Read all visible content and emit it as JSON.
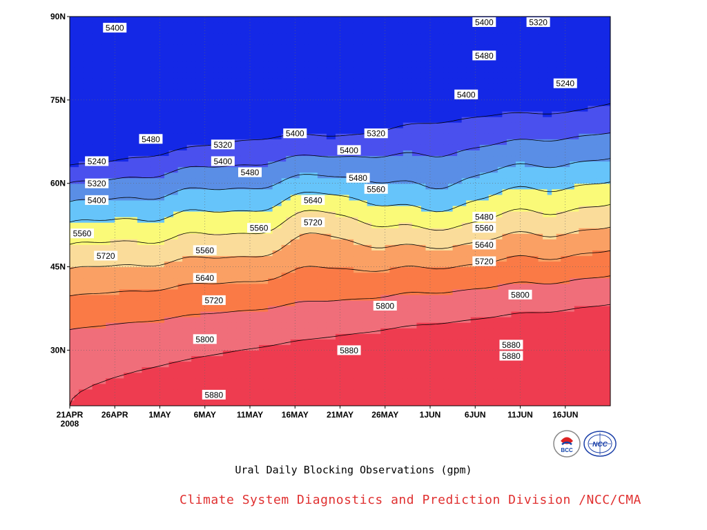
{
  "chart_data": {
    "type": "heatmap",
    "subtype": "filled-contour",
    "subtitle": "Ural Daily Blocking Observations (gpm)",
    "credit": "Climate System Diagnostics and Prediction Division /NCC/CMA",
    "x_ticks": [
      "21APR",
      "26APR",
      "1MAY",
      "6MAY",
      "11MAY",
      "16MAY",
      "21MAY",
      "26MAY",
      "1JUN",
      "6JUN",
      "11JUN",
      "16JUN"
    ],
    "x_year": "2008",
    "x_range": [
      "2008-04-21",
      "2008-06-20"
    ],
    "y_ticks": [
      "30N",
      "45N",
      "60N",
      "75N",
      "90N"
    ],
    "y_range": [
      20,
      90
    ],
    "grid": "dotted",
    "levels": [
      5240,
      5320,
      5400,
      5480,
      5560,
      5640,
      5720,
      5800,
      5880
    ],
    "colors": [
      "#0a1a6e",
      "#1428e6",
      "#4a50ee",
      "#5a8ee6",
      "#66c4fa",
      "#fafa78",
      "#fadc9a",
      "#faa064",
      "#fa7a46",
      "#f06e7a",
      "#ee3c50"
    ],
    "contour_labels": [
      {
        "text": "5400",
        "date": "2008-04-26",
        "lat": 88
      },
      {
        "text": "5400",
        "date": "2008-06-06",
        "lat": 90
      },
      {
        "text": "5320",
        "date": "2008-06-12",
        "lat": 89
      },
      {
        "text": "5480",
        "date": "2008-06-06",
        "lat": 83
      },
      {
        "text": "5400",
        "date": "2008-06-04",
        "lat": 76
      },
      {
        "text": "5240",
        "date": "2008-06-15",
        "lat": 78
      },
      {
        "text": "5480",
        "date": "2008-04-30",
        "lat": 68
      },
      {
        "text": "5240",
        "date": "2008-04-24",
        "lat": 64
      },
      {
        "text": "5320",
        "date": "2008-04-24",
        "lat": 60
      },
      {
        "text": "5400",
        "date": "2008-04-24",
        "lat": 57
      },
      {
        "text": "5320",
        "date": "2008-05-08",
        "lat": 67
      },
      {
        "text": "5400",
        "date": "2008-05-08",
        "lat": 64
      },
      {
        "text": "5480",
        "date": "2008-05-11",
        "lat": 62
      },
      {
        "text": "5400",
        "date": "2008-05-16",
        "lat": 69
      },
      {
        "text": "5320",
        "date": "2008-05-25",
        "lat": 69
      },
      {
        "text": "5400",
        "date": "2008-05-22",
        "lat": 66
      },
      {
        "text": "5480",
        "date": "2008-05-23",
        "lat": 61
      },
      {
        "text": "5560",
        "date": "2008-05-25",
        "lat": 59
      },
      {
        "text": "5640",
        "date": "2008-05-18",
        "lat": 57
      },
      {
        "text": "5720",
        "date": "2008-05-18",
        "lat": 53
      },
      {
        "text": "5560",
        "date": "2008-05-12",
        "lat": 52
      },
      {
        "text": "5560",
        "date": "2008-04-21",
        "lat": 51
      },
      {
        "text": "5720",
        "date": "2008-04-25",
        "lat": 47
      },
      {
        "text": "5560",
        "date": "2008-05-06",
        "lat": 48
      },
      {
        "text": "5640",
        "date": "2008-05-06",
        "lat": 43
      },
      {
        "text": "5720",
        "date": "2008-05-07",
        "lat": 39
      },
      {
        "text": "5800",
        "date": "2008-05-06",
        "lat": 32
      },
      {
        "text": "5880",
        "date": "2008-05-07",
        "lat": 22
      },
      {
        "text": "5880",
        "date": "2008-05-22",
        "lat": 30
      },
      {
        "text": "5800",
        "date": "2008-05-26",
        "lat": 38
      },
      {
        "text": "5480",
        "date": "2008-06-06",
        "lat": 54
      },
      {
        "text": "5560",
        "date": "2008-06-06",
        "lat": 52
      },
      {
        "text": "5640",
        "date": "2008-06-06",
        "lat": 49
      },
      {
        "text": "5720",
        "date": "2008-06-06",
        "lat": 46
      },
      {
        "text": "5800",
        "date": "2008-06-10",
        "lat": 40
      },
      {
        "text": "5880",
        "date": "2008-06-09",
        "lat": 31
      },
      {
        "text": "5880",
        "date": "2008-06-09",
        "lat": 29
      }
    ]
  },
  "logos": {
    "bcc": {
      "label": "BCC"
    },
    "ncc": {
      "label": "NCC"
    }
  }
}
